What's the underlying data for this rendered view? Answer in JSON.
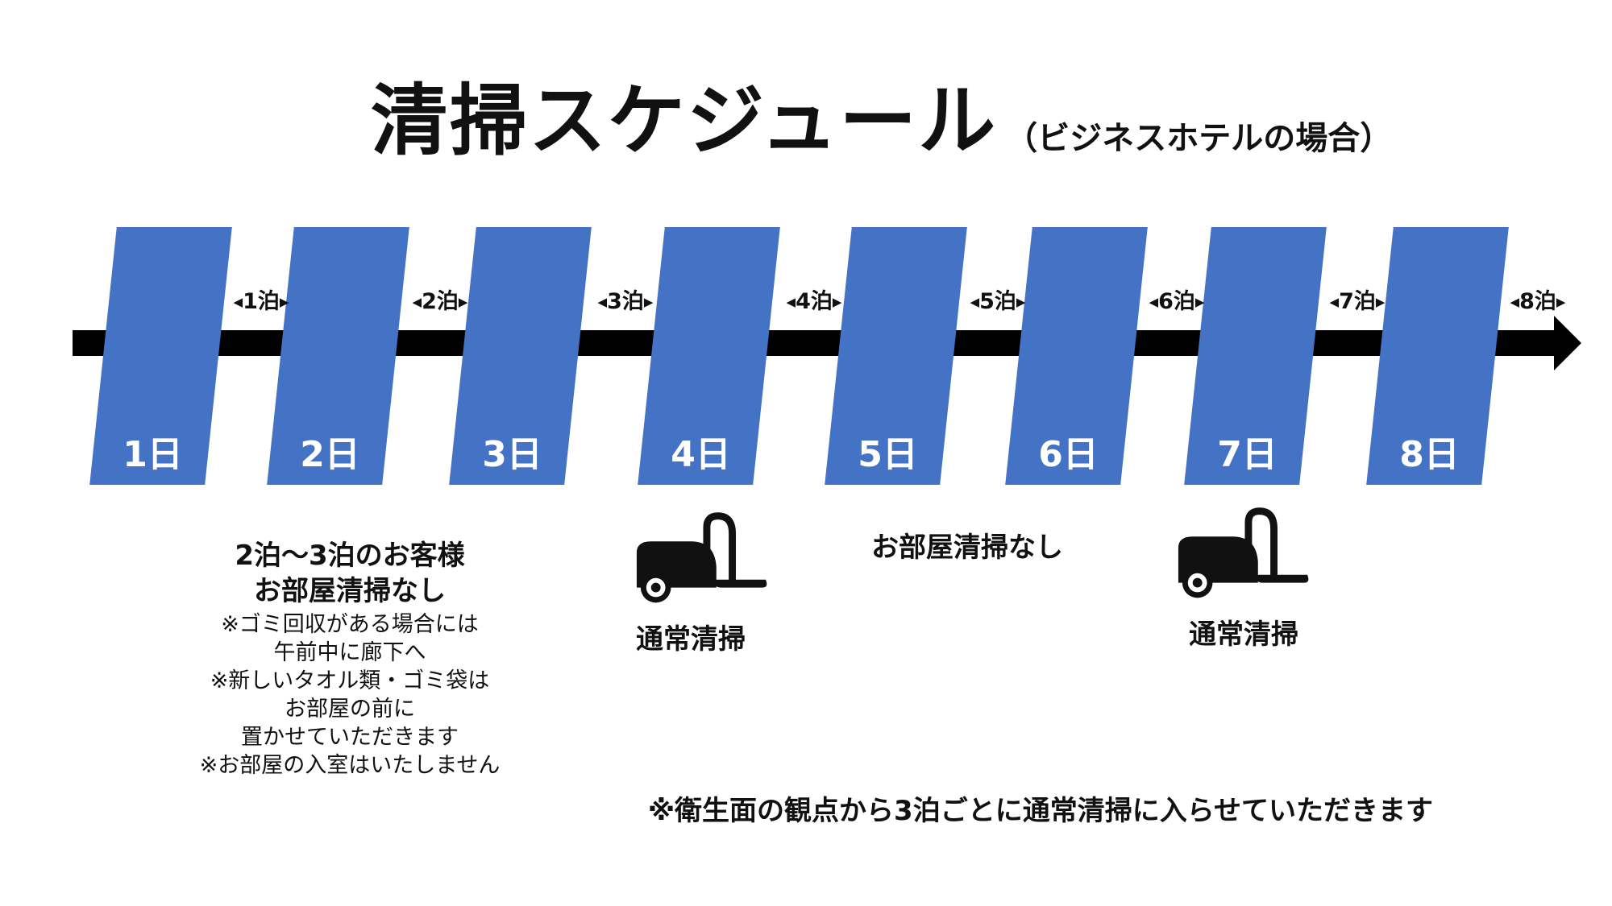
{
  "title": {
    "main": "清掃スケジュール",
    "sub": "（ビジネスホテルの場合）"
  },
  "colors": {
    "block": "#4472C4",
    "arrow": "#000000",
    "text": "#111111",
    "day_text": "#ffffff"
  },
  "days": [
    "1日",
    "2日",
    "3日",
    "4日",
    "5日",
    "6日",
    "7日",
    "8日"
  ],
  "nights": [
    "1泊",
    "2泊",
    "3泊",
    "4泊",
    "5泊",
    "6泊",
    "7泊",
    "8泊"
  ],
  "notes": {
    "stay_2_3": {
      "heading": [
        "2泊～3泊のお客様",
        "お部屋清掃なし"
      ],
      "details": [
        "※ゴミ回収がある場合には",
        "午前中に廊下へ",
        "※新しいタオル類・ゴミ袋は",
        "お部屋の前に",
        "置かせていただきます",
        "※お部屋の入室はいたしません"
      ]
    },
    "day4": {
      "icon": "vacuum-cleaner-icon",
      "label": "通常清掃"
    },
    "day5_6": {
      "label": "お部屋清掃なし"
    },
    "day7": {
      "icon": "vacuum-cleaner-icon",
      "label": "通常清掃"
    },
    "footer": "※衛生面の観点から3泊ごとに通常清掃に入らせていただきます"
  }
}
